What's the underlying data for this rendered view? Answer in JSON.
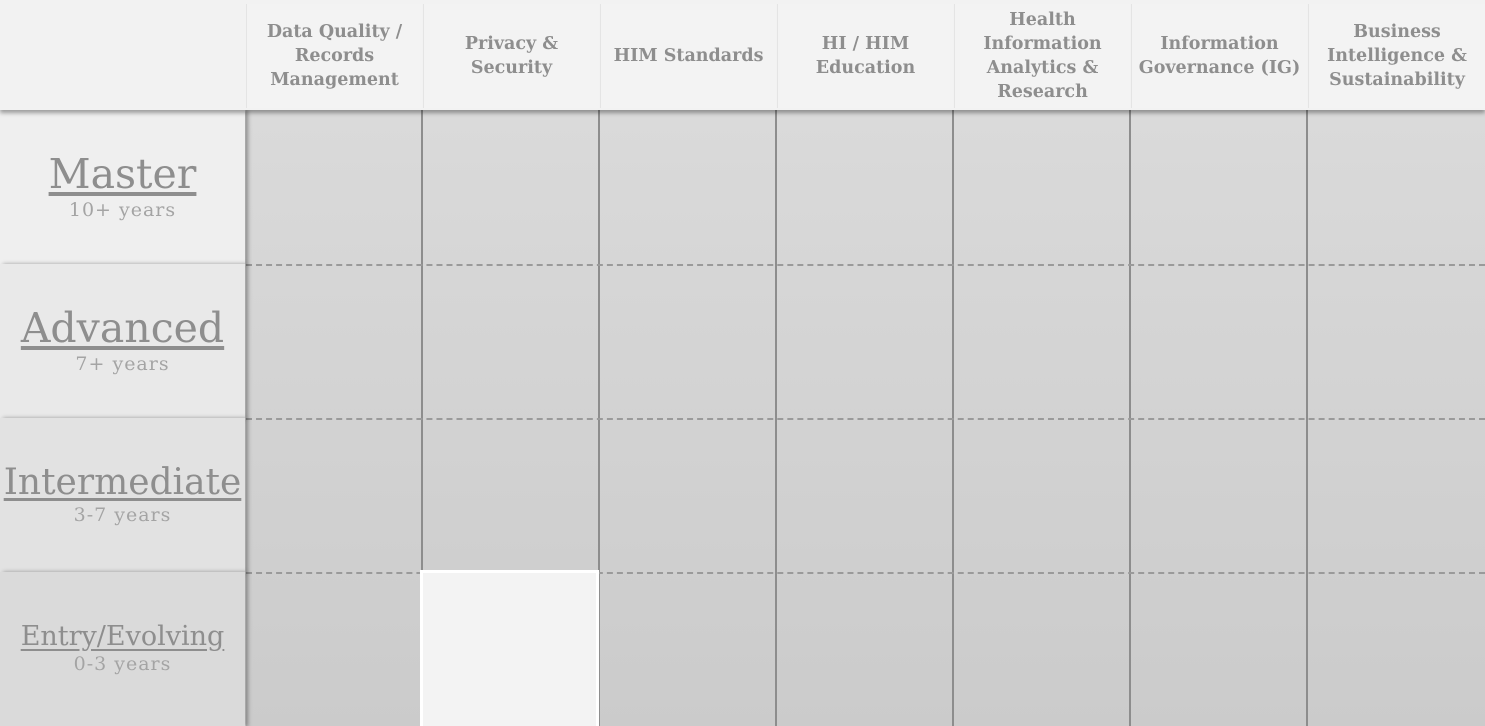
{
  "columns": [
    "Data Quality / Records Management",
    "Privacy & Security",
    "HIM Standards",
    "HI / HIM Education",
    "Health Information Analytics & Research",
    "Information Governance (IG)",
    "Business Intelligence & Sustainability"
  ],
  "rows": [
    {
      "title": "Master",
      "years": "10+ years"
    },
    {
      "title": "Advanced",
      "years": "7+ years"
    },
    {
      "title": "Intermediate",
      "years": "3-7 years"
    },
    {
      "title": "Entry/Evolving",
      "years": "0-3 years"
    }
  ],
  "colors": {
    "header_bg": "#f2f2f2",
    "cell_bg": "#d3d3d3",
    "text": "#8e8e8e",
    "selected_cell": "#f3f3f3"
  }
}
